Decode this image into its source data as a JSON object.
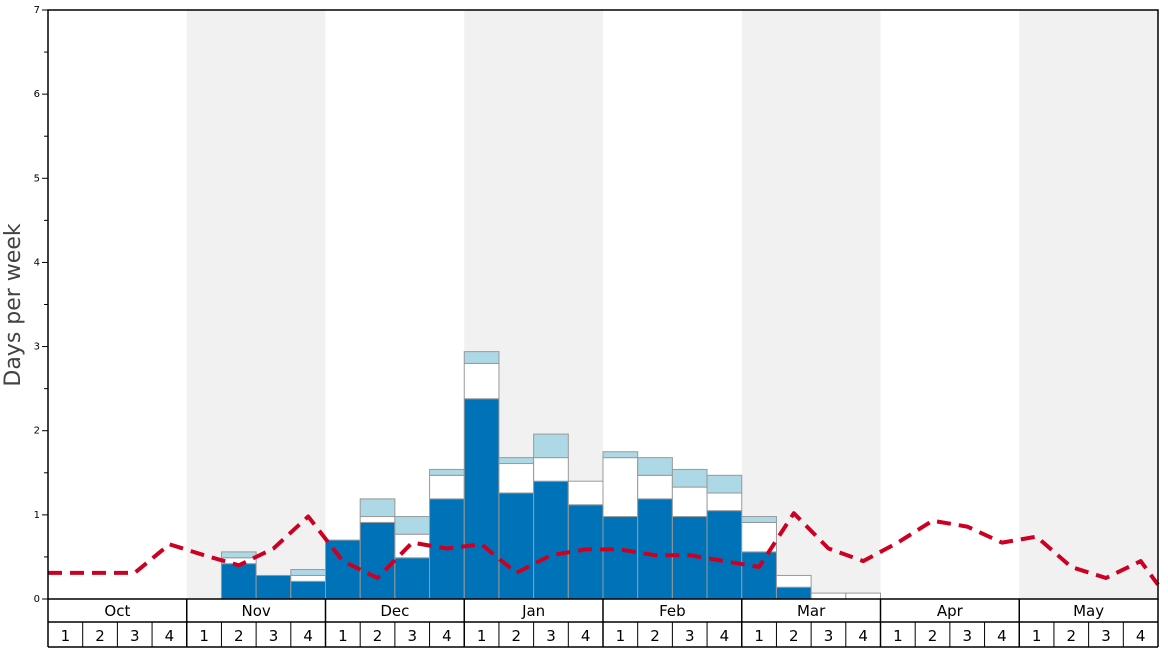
{
  "chart_data": {
    "type": "bar",
    "stacked": true,
    "xlabel": "",
    "ylabel": "Days per week",
    "ylim": [
      0,
      7
    ],
    "yticks": [
      0,
      1,
      2,
      3,
      4,
      5,
      6,
      7
    ],
    "months": [
      "Oct",
      "Nov",
      "Dec",
      "Jan",
      "Feb",
      "Mar",
      "Apr",
      "May"
    ],
    "weeks": [
      "1",
      "2",
      "3",
      "4"
    ],
    "alternate_month_shading": true,
    "colors": {
      "series_1": "#0072b8",
      "series_2": "#ffffff",
      "series_3": "#add8e6",
      "line": "#cc0022",
      "shade": "#f1f1f1"
    },
    "series": [
      {
        "values": [
          0,
          0,
          0,
          0,
          0,
          0.42,
          0.28,
          0.21,
          0.7,
          0.91,
          0.49,
          1.19,
          2.38,
          1.26,
          1.4,
          1.12,
          0.98,
          1.19,
          0.98,
          1.05,
          0.56,
          0.14,
          0,
          0,
          0,
          0,
          0,
          0,
          0,
          0,
          0,
          0
        ]
      },
      {
        "values": [
          0,
          0,
          0,
          0,
          0,
          0.07,
          0,
          0.07,
          0,
          0.07,
          0.28,
          0.28,
          0.42,
          0.35,
          0.28,
          0.28,
          0.7,
          0.28,
          0.35,
          0.21,
          0.35,
          0.14,
          0.07,
          0.07,
          0,
          0,
          0,
          0,
          0,
          0,
          0,
          0
        ]
      },
      {
        "values": [
          0,
          0,
          0,
          0,
          0,
          0.07,
          0,
          0.07,
          0,
          0.21,
          0.21,
          0.07,
          0.14,
          0.07,
          0.28,
          0,
          0.07,
          0.21,
          0.21,
          0.21,
          0.07,
          0,
          0,
          0,
          0,
          0,
          0,
          0,
          0,
          0,
          0,
          0
        ]
      },
      {
        "type": "line",
        "dashed": true,
        "values": [
          0.31,
          0.31,
          0.31,
          0.65,
          0.52,
          0.4,
          0.6,
          0.98,
          0.45,
          0.25,
          0.67,
          0.6,
          0.65,
          0.31,
          0.52,
          0.59,
          0.59,
          0.52,
          0.52,
          0.45,
          0.38,
          1.02,
          0.6,
          0.45,
          0.67,
          0.93,
          0.86,
          0.67,
          0.74,
          0.38,
          0.25,
          0.45
        ]
      }
    ],
    "end_values": {
      "line": 0.17
    }
  }
}
